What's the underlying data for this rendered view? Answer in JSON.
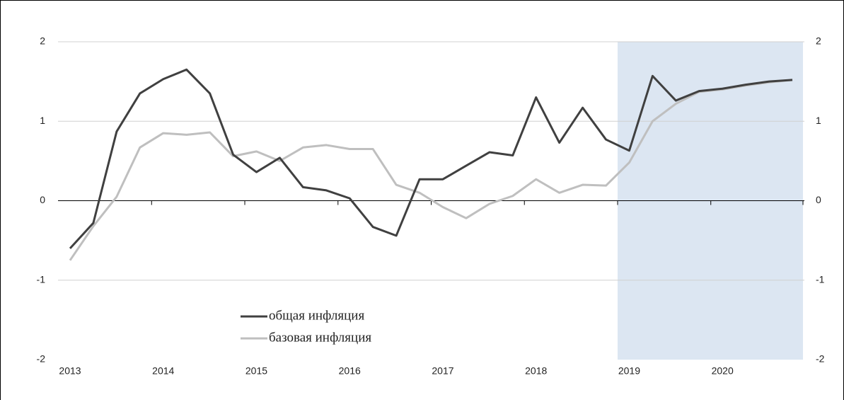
{
  "chart_data": {
    "type": "line",
    "categories": [
      "2013",
      null,
      null,
      null,
      "2014",
      null,
      null,
      null,
      "2015",
      null,
      null,
      null,
      "2016",
      null,
      null,
      null,
      "2017",
      null,
      null,
      null,
      "2018",
      null,
      null,
      null,
      "2019",
      null,
      null,
      null,
      "2020",
      null,
      null,
      null
    ],
    "series": [
      {
        "name": "общая инфляция",
        "color": "#404040",
        "values": [
          -0.6,
          -0.28,
          0.87,
          1.35,
          1.53,
          1.65,
          1.35,
          0.58,
          0.36,
          0.54,
          0.17,
          0.13,
          0.03,
          -0.33,
          -0.44,
          0.27,
          0.27,
          0.44,
          0.61,
          0.57,
          1.3,
          0.73,
          1.17,
          0.77,
          0.63,
          1.57,
          1.26,
          1.38,
          1.41,
          1.46,
          1.5,
          1.52
        ]
      },
      {
        "name": "базовая инфляция",
        "color": "#bfbfbf",
        "values": [
          -0.75,
          -0.32,
          0.05,
          0.67,
          0.85,
          0.83,
          0.86,
          0.56,
          0.62,
          0.5,
          0.67,
          0.7,
          0.65,
          0.65,
          0.2,
          0.1,
          -0.08,
          -0.22,
          -0.04,
          0.06,
          0.27,
          0.1,
          0.2,
          0.19,
          0.48,
          1.0,
          1.22,
          1.37,
          1.4,
          1.45,
          1.49,
          1.52
        ]
      }
    ],
    "ylim": [
      -2,
      2
    ],
    "yticks": [
      -2,
      -1,
      0,
      1,
      2
    ],
    "y2lim": [
      -2,
      2
    ],
    "y2ticks": [
      -2,
      -1,
      0,
      1,
      2
    ],
    "grid": true,
    "highlight": {
      "from": "2019",
      "color": "#dce6f2"
    }
  }
}
